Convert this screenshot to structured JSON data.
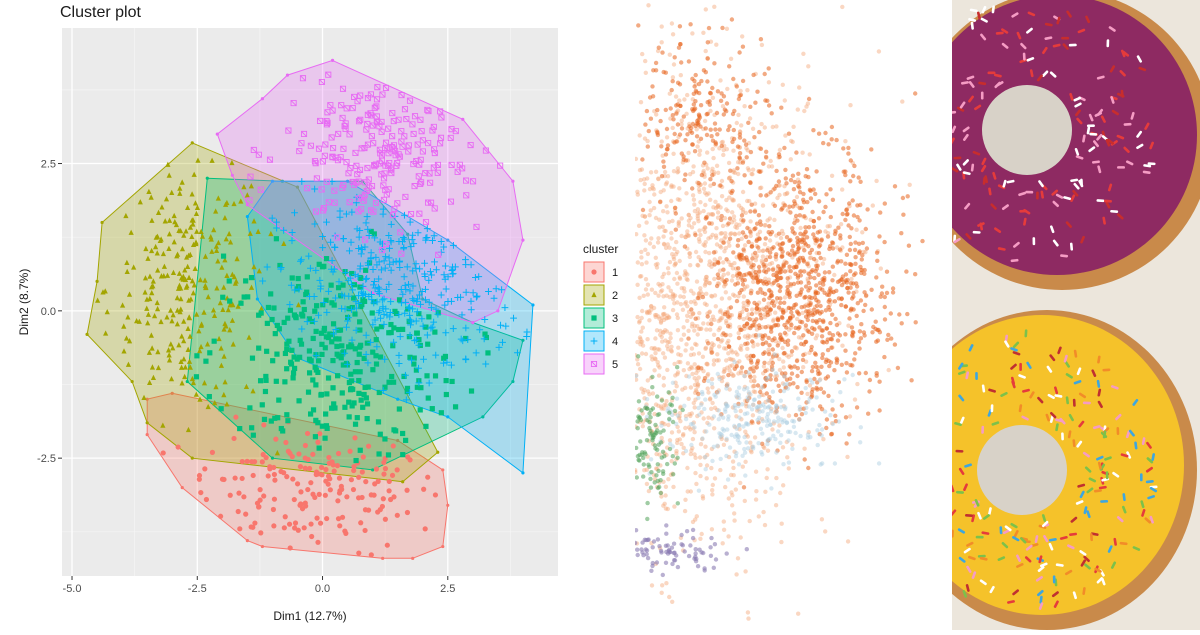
{
  "chart_data": {
    "type": "scatter",
    "title": "Cluster plot",
    "xlabel": "Dim1 (12.7%)",
    "ylabel": "Dim2 (8.7%)",
    "xlim": [
      -5.2,
      4.7
    ],
    "ylim": [
      -4.5,
      4.8
    ],
    "x_ticks": [
      -5.0,
      -2.5,
      0.0,
      2.5
    ],
    "x_tick_labels": [
      "-5.0",
      "-2.5",
      "0.0",
      "2.5"
    ],
    "y_ticks": [
      2.5,
      0.0,
      -2.5
    ],
    "y_tick_labels": [
      "2.5",
      "0.0",
      "-2.5"
    ],
    "grid": true,
    "legend_title": "cluster",
    "legend_position": "right",
    "series": [
      {
        "name": "1",
        "color": "#F8766D",
        "marker": "circle",
        "hull": [
          [
            -3.5,
            -1.5
          ],
          [
            -3.5,
            -2.1
          ],
          [
            -2.8,
            -3.0
          ],
          [
            -1.5,
            -3.9
          ],
          [
            -1.2,
            -4.0
          ],
          [
            1.2,
            -4.2
          ],
          [
            1.8,
            -4.2
          ],
          [
            2.4,
            -4.0
          ],
          [
            2.5,
            -3.3
          ],
          [
            2.4,
            -2.7
          ],
          [
            1.5,
            -2.2
          ],
          [
            -3.0,
            -1.4
          ]
        ],
        "center": [
          -0.2,
          -3.0
        ],
        "spread": [
          1.3,
          0.55
        ],
        "count": 180
      },
      {
        "name": "2",
        "color": "#A3A500",
        "marker": "triangle",
        "hull": [
          [
            -2.6,
            2.85
          ],
          [
            -0.5,
            2.1
          ],
          [
            2.3,
            -2.4
          ],
          [
            1.6,
            -2.9
          ],
          [
            -2.6,
            -2.5
          ],
          [
            -3.5,
            -1.9
          ],
          [
            -3.8,
            -1.2
          ],
          [
            -4.7,
            -0.4
          ],
          [
            -4.5,
            0.5
          ],
          [
            -4.4,
            1.5
          ]
        ],
        "center": [
          -2.7,
          0.4
        ],
        "spread": [
          0.8,
          1.1
        ],
        "count": 260
      },
      {
        "name": "3",
        "color": "#00BF7D",
        "marker": "square",
        "hull": [
          [
            -2.3,
            2.25
          ],
          [
            -0.8,
            2.2
          ],
          [
            0.8,
            2.2
          ],
          [
            1.7,
            1.3
          ],
          [
            2.0,
            0.2
          ],
          [
            3.0,
            -0.2
          ],
          [
            4.0,
            -0.5
          ],
          [
            3.8,
            -1.2
          ],
          [
            3.2,
            -1.8
          ],
          [
            1.0,
            -2.7
          ],
          [
            -1.0,
            -2.5
          ],
          [
            -2.7,
            -1.2
          ]
        ],
        "center": [
          0.2,
          -0.8
        ],
        "spread": [
          1.3,
          0.9
        ],
        "count": 300
      },
      {
        "name": "4",
        "color": "#00B0F6",
        "marker": "plus",
        "hull": [
          [
            -1.0,
            2.2
          ],
          [
            0.5,
            2.2
          ],
          [
            2.5,
            1.2
          ],
          [
            4.2,
            0.1
          ],
          [
            4.0,
            -2.75
          ],
          [
            2.5,
            -1.8
          ],
          [
            1.5,
            -1.5
          ],
          [
            -0.5,
            -0.8
          ],
          [
            -1.3,
            0.2
          ],
          [
            -1.5,
            1.6
          ]
        ],
        "center": [
          1.5,
          0.4
        ],
        "spread": [
          1.2,
          0.8
        ],
        "count": 330
      },
      {
        "name": "5",
        "color": "#E76BF3",
        "marker": "square-cross",
        "hull": [
          [
            0.2,
            4.25
          ],
          [
            2.8,
            3.25
          ],
          [
            3.8,
            2.2
          ],
          [
            4.0,
            1.2
          ],
          [
            3.5,
            0.0
          ],
          [
            3.0,
            -0.2
          ],
          [
            1.0,
            0.3
          ],
          [
            -1.5,
            1.8
          ],
          [
            -1.8,
            2.3
          ],
          [
            -2.1,
            3.0
          ],
          [
            -1.2,
            3.6
          ],
          [
            -0.7,
            4.0
          ]
        ],
        "center": [
          1.2,
          2.7
        ],
        "spread": [
          1.0,
          0.7
        ],
        "count": 230
      }
    ]
  },
  "scatter_image": {
    "colors": [
      "#e8651e",
      "#f3a677",
      "#a9cde0",
      "#52a35a",
      "#8b7bb3"
    ]
  },
  "donut_image": {
    "colors": {
      "glaze_pink": "#8e2a62",
      "glaze_yellow": "#f5c22a",
      "dough": "#c98a4a",
      "paper": "#ece6dc"
    }
  }
}
